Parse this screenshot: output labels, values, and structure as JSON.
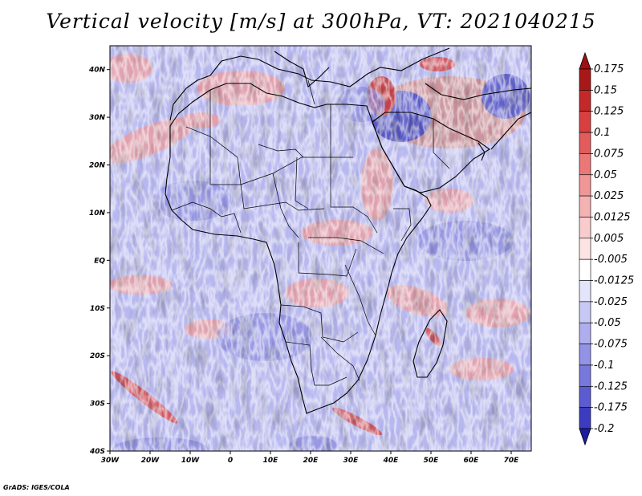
{
  "title": "Vertical velocity [m/s] at 300hPa, VT: 2021040215",
  "credit": "GrADS: IGES/COLA",
  "map": {
    "lon_range": [
      -30,
      75
    ],
    "lat_range": [
      -40,
      45
    ],
    "lat_ticks": [
      {
        "value": 40,
        "label": "40N"
      },
      {
        "value": 30,
        "label": "30N"
      },
      {
        "value": 20,
        "label": "20N"
      },
      {
        "value": 10,
        "label": "10N"
      },
      {
        "value": 0,
        "label": "EQ"
      },
      {
        "value": -10,
        "label": "10S"
      },
      {
        "value": -20,
        "label": "20S"
      },
      {
        "value": -30,
        "label": "30S"
      },
      {
        "value": -40,
        "label": "40S"
      }
    ],
    "lon_ticks": [
      {
        "value": -30,
        "label": "30W"
      },
      {
        "value": -20,
        "label": "20W"
      },
      {
        "value": -10,
        "label": "10W"
      },
      {
        "value": 0,
        "label": "0"
      },
      {
        "value": 10,
        "label": "10E"
      },
      {
        "value": 20,
        "label": "20E"
      },
      {
        "value": 30,
        "label": "30E"
      },
      {
        "value": 40,
        "label": "40E"
      },
      {
        "value": 50,
        "label": "50E"
      },
      {
        "value": 60,
        "label": "60E"
      },
      {
        "value": 70,
        "label": "70E"
      }
    ]
  },
  "colorbar": {
    "levels": [
      {
        "label": "0.175",
        "color": "#a81818"
      },
      {
        "label": "0.15",
        "color": "#c42828"
      },
      {
        "label": "0.125",
        "color": "#d84040"
      },
      {
        "label": "0.1",
        "color": "#e25c5c"
      },
      {
        "label": "0.075",
        "color": "#ea7878"
      },
      {
        "label": "0.05",
        "color": "#f09696"
      },
      {
        "label": "0.025",
        "color": "#f4b2b2"
      },
      {
        "label": "0.0125",
        "color": "#f8cccc"
      },
      {
        "label": "0.005",
        "color": "#fce4e4"
      },
      {
        "label": "-0.005",
        "color": "#ffffff"
      },
      {
        "label": "-0.0125",
        "color": "#e4e4fa"
      },
      {
        "label": "-0.025",
        "color": "#c8c8f4"
      },
      {
        "label": "-0.05",
        "color": "#aeaeee"
      },
      {
        "label": "-0.075",
        "color": "#9292e6"
      },
      {
        "label": "-0.1",
        "color": "#7878dc"
      },
      {
        "label": "-0.125",
        "color": "#5c5cd0"
      },
      {
        "label": "-0.175",
        "color": "#3c3cc0"
      },
      {
        "label": "-0.2",
        "color": "#2424a8"
      }
    ],
    "top_color": "#a01010",
    "bottom_color": "#1c1ca0"
  }
}
